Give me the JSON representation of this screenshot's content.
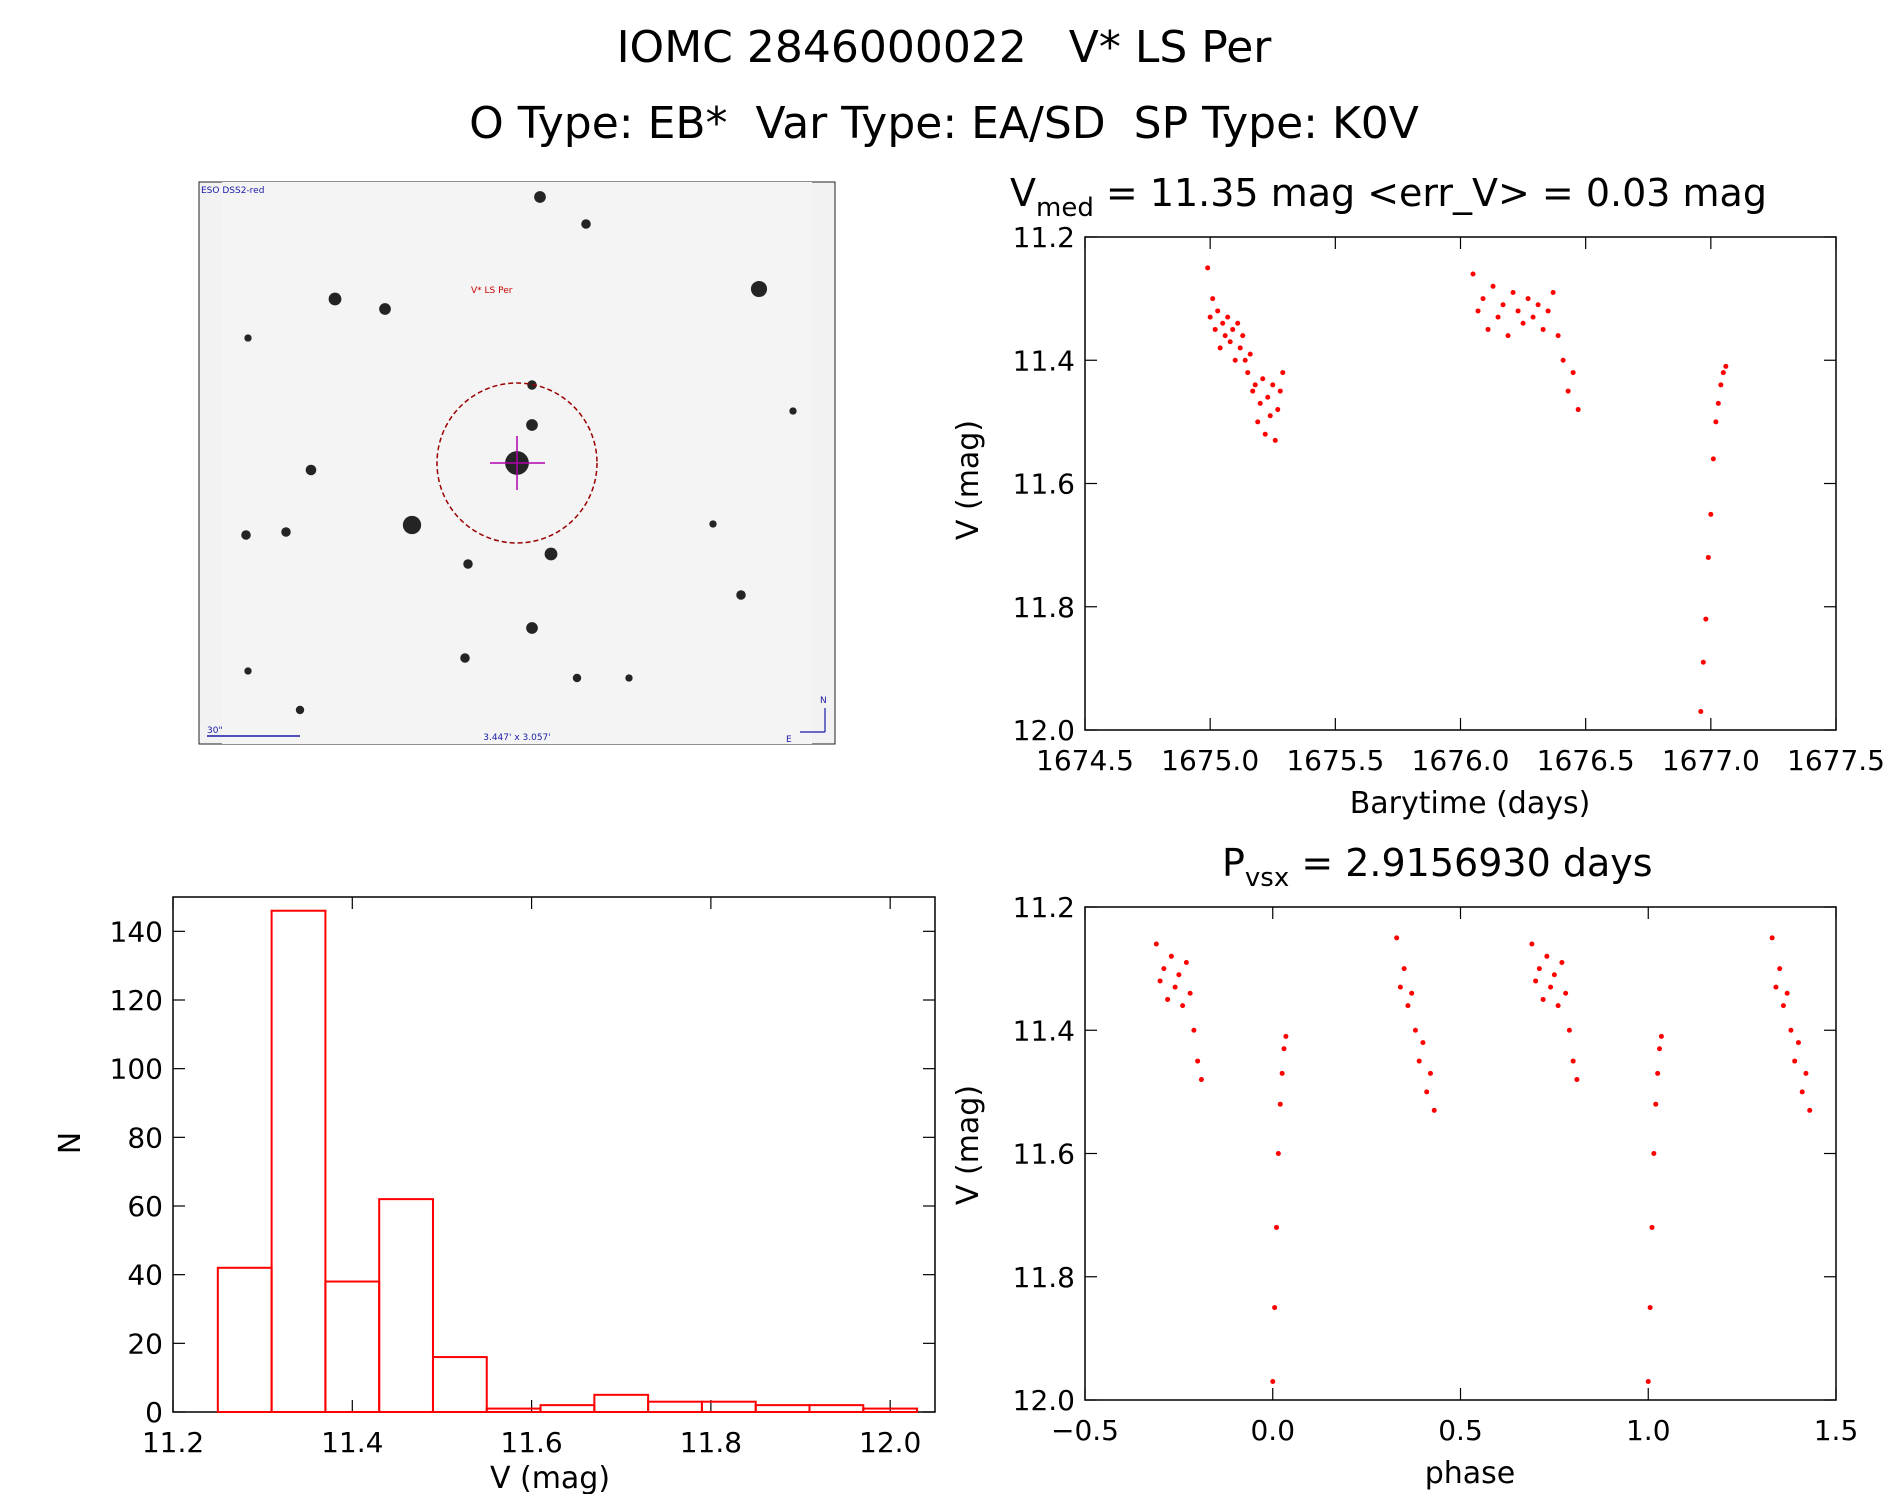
{
  "header": {
    "title_line1": "IOMC 2846000022   V* LS Per",
    "title_line2": "O Type: EB*  Var Type: EA/SD  SP Type: K0V"
  },
  "finder": {
    "label_survey": "ESO DSS2-red",
    "label_target": "V* LS Per",
    "label_scale": "30\"",
    "label_fov": "3.447' x 3.057'",
    "label_north": "N",
    "label_east": "E"
  },
  "colors": {
    "data": "#ff0000",
    "axis": "#000000",
    "finder_label": "#cc0000",
    "finder_blue": "#1a1aa8"
  },
  "chart_data": [
    {
      "id": "lightcurve",
      "type": "scatter",
      "title": "V_med = 11.35 mag <err_V> = 0.03 mag",
      "title_main": "V",
      "title_sub": "med",
      "title_rest": " = 11.35 mag <err_V> = 0.03 mag",
      "xlabel": "Barytime (days)",
      "ylabel": "V (mag)",
      "xlim": [
        1674.5,
        1677.5
      ],
      "ylim": [
        12.0,
        11.2
      ],
      "y_inverted": true,
      "xticks": [
        "1674.5",
        "1675.0",
        "1675.5",
        "1676.0",
        "1676.5",
        "1677.0",
        "1677.5"
      ],
      "yticks": [
        "11.2",
        "11.4",
        "11.6",
        "11.8",
        "12.0"
      ],
      "series": [
        {
          "x": [
            1674.99,
            1675.0,
            1675.01,
            1675.02,
            1675.03,
            1675.04,
            1675.05,
            1675.06,
            1675.07,
            1675.08,
            1675.09,
            1675.1,
            1675.11,
            1675.12,
            1675.13,
            1675.14,
            1675.15,
            1675.16,
            1675.17,
            1675.18,
            1675.19,
            1675.2,
            1675.21,
            1675.22,
            1675.23,
            1675.24,
            1675.25,
            1675.26,
            1675.27,
            1675.28,
            1675.29,
            1676.05,
            1676.07,
            1676.09,
            1676.11,
            1676.13,
            1676.15,
            1676.17,
            1676.19,
            1676.21,
            1676.23,
            1676.25,
            1676.27,
            1676.29,
            1676.31,
            1676.33,
            1676.35,
            1676.37,
            1676.39,
            1676.41,
            1676.43,
            1676.45,
            1676.47,
            1676.96,
            1676.97,
            1676.98,
            1676.99,
            1677.0,
            1677.01,
            1677.02,
            1677.03,
            1677.04,
            1677.05,
            1677.06
          ],
          "y": [
            11.25,
            11.33,
            11.3,
            11.35,
            11.32,
            11.38,
            11.34,
            11.36,
            11.33,
            11.37,
            11.35,
            11.4,
            11.34,
            11.38,
            11.36,
            11.4,
            11.42,
            11.39,
            11.45,
            11.44,
            11.5,
            11.47,
            11.43,
            11.52,
            11.46,
            11.49,
            11.44,
            11.53,
            11.48,
            11.45,
            11.42,
            11.26,
            11.32,
            11.3,
            11.35,
            11.28,
            11.33,
            11.31,
            11.36,
            11.29,
            11.32,
            11.34,
            11.3,
            11.33,
            11.31,
            11.35,
            11.32,
            11.29,
            11.36,
            11.4,
            11.45,
            11.42,
            11.48,
            11.97,
            11.89,
            11.82,
            11.72,
            11.65,
            11.56,
            11.5,
            11.47,
            11.44,
            11.42,
            11.41
          ]
        }
      ]
    },
    {
      "id": "histogram",
      "type": "bar",
      "xlabel": "V (mag)",
      "ylabel": "N",
      "xlim": [
        11.2,
        12.05
      ],
      "ylim": [
        0,
        150
      ],
      "xticks": [
        "11.2",
        "11.4",
        "11.6",
        "11.8",
        "12.0"
      ],
      "yticks": [
        "0",
        "20",
        "40",
        "60",
        "80",
        "100",
        "120",
        "140"
      ],
      "bin_edges": [
        11.25,
        11.31,
        11.37,
        11.43,
        11.49,
        11.55,
        11.61,
        11.67,
        11.73,
        11.79,
        11.85,
        11.91,
        11.97
      ],
      "values": [
        42,
        146,
        38,
        62,
        16,
        1,
        2,
        5,
        3,
        3,
        2,
        2,
        1
      ]
    },
    {
      "id": "phased",
      "type": "scatter",
      "title": "P_vsx = 2.9156930 days",
      "title_main": "P",
      "title_sub": "vsx",
      "title_rest": " = 2.9156930 days",
      "xlabel": "phase",
      "ylabel": "V (mag)",
      "xlim": [
        -0.5,
        1.5
      ],
      "ylim": [
        12.0,
        11.2
      ],
      "y_inverted": true,
      "xticks": [
        "−0.5",
        "0.0",
        "0.5",
        "1.0",
        "1.5"
      ],
      "yticks": [
        "11.2",
        "11.4",
        "11.6",
        "11.8",
        "12.0"
      ],
      "series": [
        {
          "x": [
            -0.31,
            -0.3,
            -0.29,
            -0.28,
            -0.27,
            -0.26,
            -0.25,
            -0.24,
            -0.23,
            -0.22,
            -0.21,
            -0.2,
            -0.19,
            0.0,
            0.005,
            0.01,
            0.015,
            0.02,
            0.025,
            0.03,
            0.035,
            0.33,
            0.34,
            0.35,
            0.36,
            0.37,
            0.38,
            0.39,
            0.4,
            0.41,
            0.42,
            0.43,
            0.69,
            0.7,
            0.71,
            0.72,
            0.73,
            0.74,
            0.75,
            0.76,
            0.77,
            0.78,
            0.79,
            0.8,
            0.81,
            1.0,
            1.005,
            1.01,
            1.015,
            1.02,
            1.025,
            1.03,
            1.035,
            1.33,
            1.34,
            1.35,
            1.36,
            1.37,
            1.38,
            1.39,
            1.4,
            1.41,
            1.42,
            1.43
          ],
          "y": [
            11.26,
            11.32,
            11.3,
            11.35,
            11.28,
            11.33,
            11.31,
            11.36,
            11.29,
            11.34,
            11.4,
            11.45,
            11.48,
            11.97,
            11.85,
            11.72,
            11.6,
            11.52,
            11.47,
            11.43,
            11.41,
            11.25,
            11.33,
            11.3,
            11.36,
            11.34,
            11.4,
            11.45,
            11.42,
            11.5,
            11.47,
            11.53,
            11.26,
            11.32,
            11.3,
            11.35,
            11.28,
            11.33,
            11.31,
            11.36,
            11.29,
            11.34,
            11.4,
            11.45,
            11.48,
            11.97,
            11.85,
            11.72,
            11.6,
            11.52,
            11.47,
            11.43,
            11.41,
            11.25,
            11.33,
            11.3,
            11.36,
            11.34,
            11.4,
            11.45,
            11.42,
            11.5,
            11.47,
            11.53
          ]
        }
      ]
    }
  ]
}
